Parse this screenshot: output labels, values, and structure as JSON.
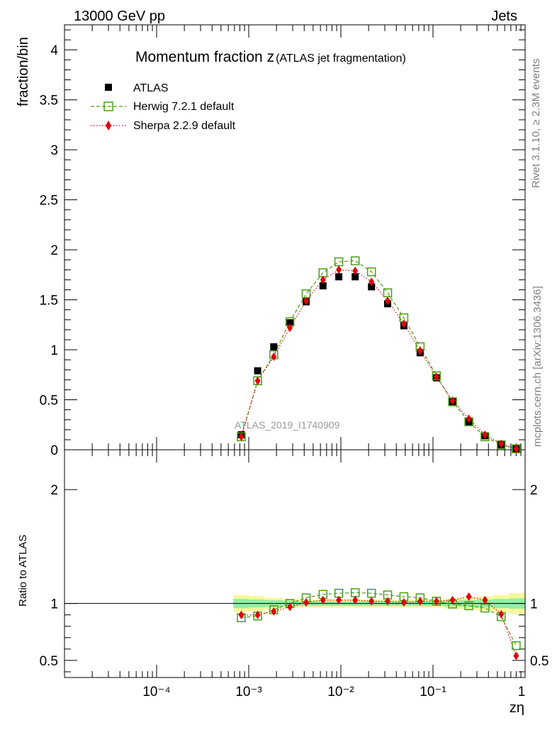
{
  "header": {
    "energy": "13000 GeV pp",
    "category": "Jets"
  },
  "side": {
    "rivet": "Rivet 3.1.10, ≥ 2.3M events",
    "mcplots": "mcplots.cern.ch [arXiv:1306.3436]"
  },
  "chart_data": {
    "type": "scatter",
    "title_main": "Momentum fraction z",
    "title_sub": "(ATLAS jet fragmentation)",
    "watermark": "ATLAS_2019_I1740909",
    "xlabel": "zη",
    "ylabel_top": "fraction/bin",
    "ylabel_bottom": "Ratio to ATLAS",
    "xscale": "log",
    "xlim": [
      1e-05,
      1
    ],
    "ylim_top": [
      0,
      4.25
    ],
    "ylim_bottom": [
      0.35,
      2.35
    ],
    "x_tick_labels": [
      "10⁻⁴",
      "10⁻³",
      "10⁻²",
      "10⁻¹",
      "1"
    ],
    "y_tick_labels_top": [
      "0",
      "0.5",
      "1",
      "1.5",
      "2",
      "2.5",
      "3",
      "3.5",
      "4"
    ],
    "y_tick_labels_bottom": [
      "0.5",
      "1",
      "2"
    ],
    "legend": [
      {
        "name": "ATLAS"
      },
      {
        "name": "Herwig 7.2.1 default"
      },
      {
        "name": "Sherpa 2.2.9 default"
      }
    ],
    "x": [
      0.00083,
      0.00125,
      0.00187,
      0.0028,
      0.0042,
      0.0064,
      0.0095,
      0.0143,
      0.0215,
      0.0322,
      0.0483,
      0.0725,
      0.109,
      0.163,
      0.245,
      0.367,
      0.55,
      0.8
    ],
    "series": [
      {
        "name": "ATLAS",
        "color": "#000000",
        "values": [
          0.15,
          0.79,
          1.03,
          1.27,
          1.48,
          1.64,
          1.73,
          1.73,
          1.63,
          1.46,
          1.24,
          0.97,
          0.72,
          0.48,
          0.28,
          0.14,
          0.05,
          0.01
        ]
      },
      {
        "name": "Herwig 7.2.1 default",
        "color": "#4c9e16",
        "values": [
          0.13,
          0.69,
          0.95,
          1.28,
          1.56,
          1.77,
          1.88,
          1.89,
          1.78,
          1.57,
          1.32,
          1.03,
          0.74,
          0.48,
          0.28,
          0.13,
          0.05,
          0.01
        ]
      },
      {
        "name": "Sherpa 2.2.9 default",
        "color": "#e0000b",
        "values": [
          0.13,
          0.69,
          0.93,
          1.22,
          1.49,
          1.7,
          1.8,
          1.79,
          1.68,
          1.49,
          1.26,
          0.99,
          0.73,
          0.49,
          0.31,
          0.15,
          0.06,
          0.01
        ]
      }
    ],
    "ratio_series": [
      {
        "name": "Herwig 7.2.1 default",
        "values": [
          0.875,
          0.89,
          0.945,
          1.0,
          1.05,
          1.08,
          1.09,
          1.095,
          1.09,
          1.075,
          1.06,
          1.05,
          1.02,
          0.995,
          0.98,
          0.96,
          0.885,
          0.63
        ]
      },
      {
        "name": "Sherpa 2.2.9 default",
        "values": [
          0.9,
          0.9,
          0.93,
          0.97,
          1.01,
          1.03,
          1.03,
          1.03,
          1.02,
          1.02,
          1.01,
          1.02,
          1.02,
          1.03,
          1.06,
          1.03,
          0.905,
          0.54
        ]
      }
    ],
    "uncertainty_band": {
      "x_edges": [
        0.00068,
        0.001,
        0.0015,
        0.0023,
        0.0035,
        0.0052,
        0.0078,
        0.0117,
        0.0176,
        0.026,
        0.039,
        0.059,
        0.088,
        0.132,
        0.198,
        0.297,
        0.446,
        0.668,
        1.0
      ],
      "stat_half": [
        0.04,
        0.035,
        0.03,
        0.025,
        0.02,
        0.02,
        0.02,
        0.02,
        0.02,
        0.02,
        0.02,
        0.02,
        0.02,
        0.025,
        0.03,
        0.035,
        0.04,
        0.045
      ],
      "total_half": [
        0.075,
        0.065,
        0.05,
        0.04,
        0.035,
        0.035,
        0.035,
        0.035,
        0.035,
        0.035,
        0.035,
        0.035,
        0.035,
        0.045,
        0.05,
        0.06,
        0.075,
        0.09
      ],
      "stat_color": "#8ff0a4",
      "total_color": "#f8f79a"
    }
  }
}
